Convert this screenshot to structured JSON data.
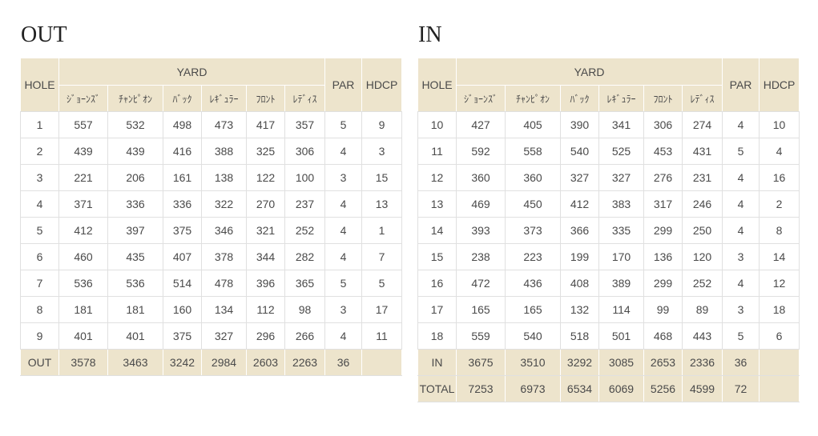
{
  "colors": {
    "header_bg": "#ede4cc",
    "row_bg": "#ffffff",
    "grid_line": "#e0e0e0",
    "header_separator": "#ffffff",
    "text": "#4a4a4a",
    "title_text": "#222222"
  },
  "columns": {
    "hole": "HOLE",
    "yard": "YARD",
    "par": "PAR",
    "hdcp": "HDCP",
    "tees": [
      "ｼﾞｮｰﾝｽﾞ",
      "ﾁｬﾝﾋﾟｵﾝ",
      "ﾊﾞｯｸ",
      "ﾚｷﾞｭﾗｰ",
      "ﾌﾛﾝﾄ",
      "ﾚﾃﾞｨｽ"
    ]
  },
  "tables": [
    {
      "title": "OUT",
      "rows": [
        {
          "hole": "1",
          "yards": [
            557,
            532,
            498,
            473,
            417,
            357
          ],
          "par": 5,
          "hdcp": 9
        },
        {
          "hole": "2",
          "yards": [
            439,
            439,
            416,
            388,
            325,
            306
          ],
          "par": 4,
          "hdcp": 3
        },
        {
          "hole": "3",
          "yards": [
            221,
            206,
            161,
            138,
            122,
            100
          ],
          "par": 3,
          "hdcp": 15
        },
        {
          "hole": "4",
          "yards": [
            371,
            336,
            336,
            322,
            270,
            237
          ],
          "par": 4,
          "hdcp": 13
        },
        {
          "hole": "5",
          "yards": [
            412,
            397,
            375,
            346,
            321,
            252
          ],
          "par": 4,
          "hdcp": 1
        },
        {
          "hole": "6",
          "yards": [
            460,
            435,
            407,
            378,
            344,
            282
          ],
          "par": 4,
          "hdcp": 7
        },
        {
          "hole": "7",
          "yards": [
            536,
            536,
            514,
            478,
            396,
            365
          ],
          "par": 5,
          "hdcp": 5
        },
        {
          "hole": "8",
          "yards": [
            181,
            181,
            160,
            134,
            112,
            98
          ],
          "par": 3,
          "hdcp": 17
        },
        {
          "hole": "9",
          "yards": [
            401,
            401,
            375,
            327,
            296,
            266
          ],
          "par": 4,
          "hdcp": 11
        }
      ],
      "totals": [
        {
          "label": "OUT",
          "yards": [
            3578,
            3463,
            3242,
            2984,
            2603,
            2263
          ],
          "par": 36,
          "hdcp": ""
        }
      ]
    },
    {
      "title": "IN",
      "rows": [
        {
          "hole": "10",
          "yards": [
            427,
            405,
            390,
            341,
            306,
            274
          ],
          "par": 4,
          "hdcp": 10
        },
        {
          "hole": "11",
          "yards": [
            592,
            558,
            540,
            525,
            453,
            431
          ],
          "par": 5,
          "hdcp": 4
        },
        {
          "hole": "12",
          "yards": [
            360,
            360,
            327,
            327,
            276,
            231
          ],
          "par": 4,
          "hdcp": 16
        },
        {
          "hole": "13",
          "yards": [
            469,
            450,
            412,
            383,
            317,
            246
          ],
          "par": 4,
          "hdcp": 2
        },
        {
          "hole": "14",
          "yards": [
            393,
            373,
            366,
            335,
            299,
            250
          ],
          "par": 4,
          "hdcp": 8
        },
        {
          "hole": "15",
          "yards": [
            238,
            223,
            199,
            170,
            136,
            120
          ],
          "par": 3,
          "hdcp": 14
        },
        {
          "hole": "16",
          "yards": [
            472,
            436,
            408,
            389,
            299,
            252
          ],
          "par": 4,
          "hdcp": 12
        },
        {
          "hole": "17",
          "yards": [
            165,
            165,
            132,
            114,
            99,
            89
          ],
          "par": 3,
          "hdcp": 18
        },
        {
          "hole": "18",
          "yards": [
            559,
            540,
            518,
            501,
            468,
            443
          ],
          "par": 5,
          "hdcp": 6
        }
      ],
      "totals": [
        {
          "label": "IN",
          "yards": [
            3675,
            3510,
            3292,
            3085,
            2653,
            2336
          ],
          "par": 36,
          "hdcp": ""
        },
        {
          "label": "TOTAL",
          "yards": [
            7253,
            6973,
            6534,
            6069,
            5256,
            4599
          ],
          "par": 72,
          "hdcp": ""
        }
      ]
    }
  ]
}
